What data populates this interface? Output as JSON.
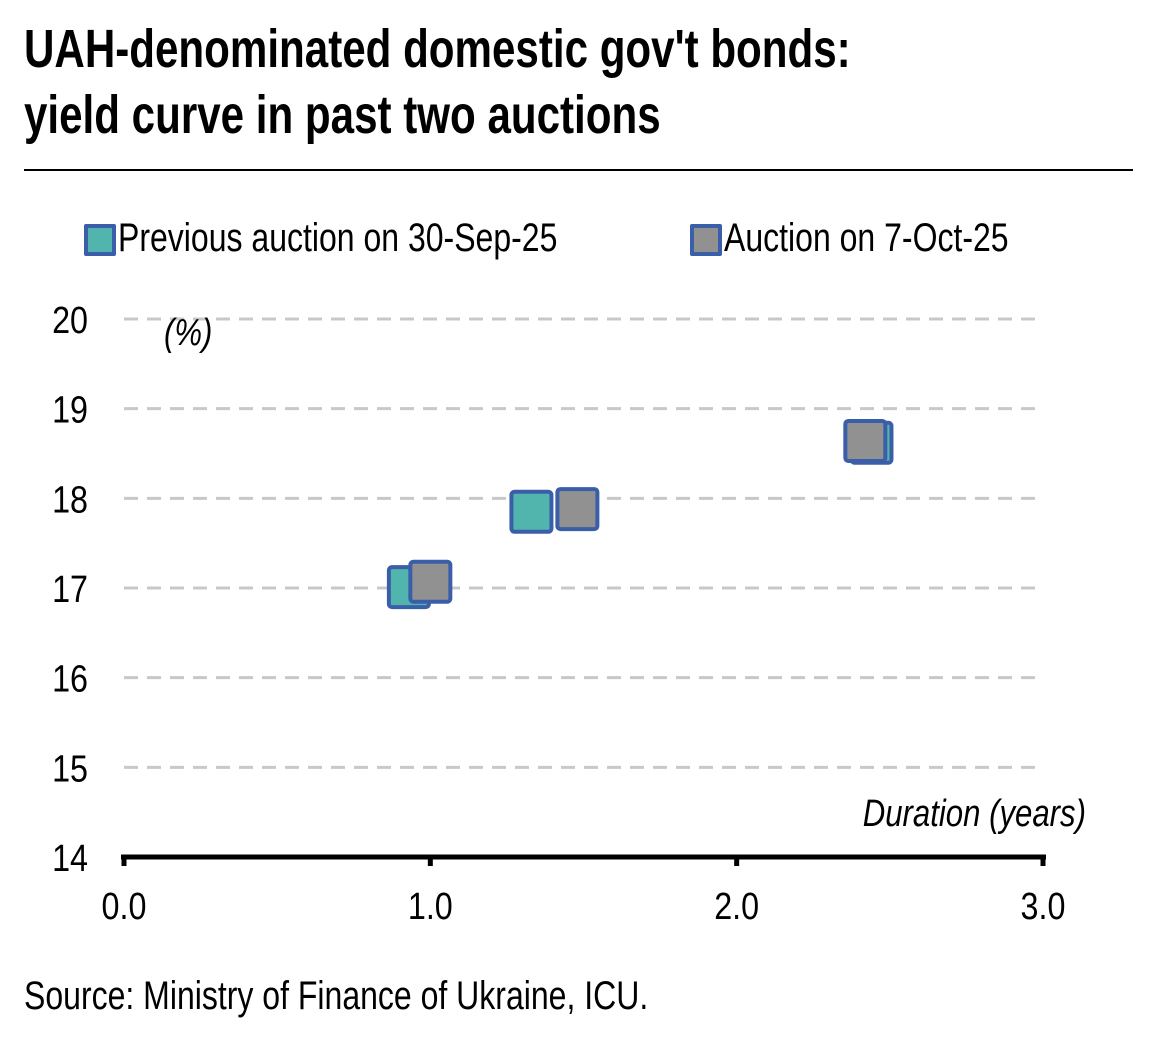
{
  "title_lines": [
    "UAH-denominated domestic gov't bonds:",
    "yield curve in past two auctions"
  ],
  "legend": [
    {
      "label": "Previous auction on 30-Sep-25",
      "fill": "#52b5ad",
      "border": "#3b5ea8"
    },
    {
      "label": "Auction on 7-Oct-25",
      "fill": "#919191",
      "border": "#3b5ea8"
    }
  ],
  "source": "Source: Ministry of Finance of Ukraine, ICU.",
  "chart_data": {
    "type": "scatter",
    "title": "UAH-denominated domestic gov't bonds: yield curve in past two auctions",
    "xlabel": "Duration (years)",
    "ylabel": "(%)",
    "xlim": [
      0,
      3
    ],
    "ylim": [
      14,
      20
    ],
    "x_ticks": [
      "0.0",
      "1.0",
      "2.0",
      "3.0"
    ],
    "y_ticks": [
      "14",
      "15",
      "16",
      "17",
      "18",
      "19",
      "20"
    ],
    "grid": "horizontal dashed",
    "legend_position": "top",
    "series": [
      {
        "name": "Previous auction on 30-Sep-25",
        "color": "#52b5ad",
        "edge_color": "#3b5ea8",
        "points": [
          {
            "x": 0.93,
            "y": 17.01
          },
          {
            "x": 1.33,
            "y": 17.85
          },
          {
            "x": 2.44,
            "y": 18.62
          }
        ]
      },
      {
        "name": "Auction on 7-Oct-25",
        "color": "#919191",
        "edge_color": "#3b5ea8",
        "points": [
          {
            "x": 1.0,
            "y": 17.07
          },
          {
            "x": 1.48,
            "y": 17.88
          },
          {
            "x": 2.42,
            "y": 18.64
          }
        ]
      }
    ]
  }
}
